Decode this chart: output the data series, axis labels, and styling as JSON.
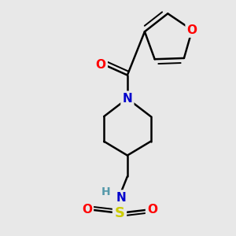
{
  "background_color": "#e8e8e8",
  "bond_color": "#000000",
  "bond_width": 1.8,
  "atom_colors": {
    "O": "#ff0000",
    "N": "#0000cc",
    "S": "#cccc00",
    "Cl": "#00bb00",
    "C": "#000000",
    "H": "#5599aa"
  },
  "figsize": [
    3.0,
    3.0
  ],
  "dpi": 100
}
